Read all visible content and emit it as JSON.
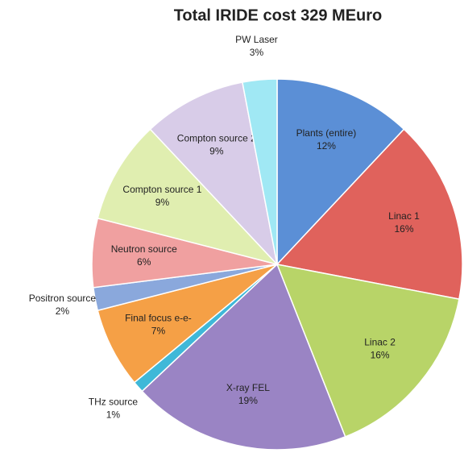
{
  "chart_data": {
    "type": "pie",
    "title": "Total IRIDE cost 329 MEuro",
    "categories": [
      "Plants (entire)",
      "Linac 1",
      "Linac 2",
      "X-ray FEL",
      "THz source",
      "Final focus e-e-",
      "Positron source",
      "Neutron source",
      "Compton source 1",
      "Compton source 2",
      "PW Laser"
    ],
    "values": [
      12,
      16,
      16,
      19,
      1,
      7,
      2,
      6,
      9,
      9,
      3
    ],
    "value_labels": [
      "12%",
      "16%",
      "16%",
      "19%",
      "1%",
      "7%",
      "2%",
      "6%",
      "9%",
      "9%",
      "3%"
    ],
    "colors": [
      "#5b8fd6",
      "#e0625c",
      "#b8d468",
      "#9a84c4",
      "#3fb8d8",
      "#f5a046",
      "#8aa8dc",
      "#f0a0a0",
      "#e0eeb0",
      "#d8cce8",
      "#a0e8f4"
    ]
  }
}
